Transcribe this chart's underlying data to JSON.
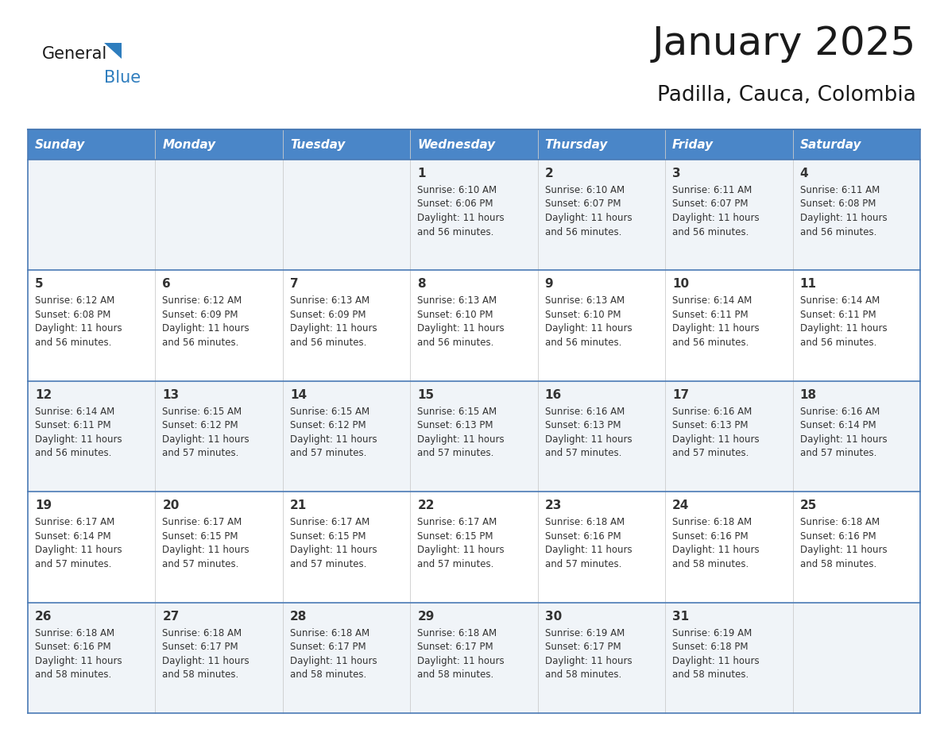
{
  "title": "January 2025",
  "subtitle": "Padilla, Cauca, Colombia",
  "days_of_week": [
    "Sunday",
    "Monday",
    "Tuesday",
    "Wednesday",
    "Thursday",
    "Friday",
    "Saturday"
  ],
  "header_bg_color": "#4a86c8",
  "header_text_color": "#ffffff",
  "cell_bg_row0": "#f0f4f8",
  "cell_bg_row1": "#ffffff",
  "cell_bg_row2": "#f0f4f8",
  "cell_bg_row3": "#ffffff",
  "cell_bg_row4": "#f0f4f8",
  "row_line_color": "#4a7ab5",
  "text_color": "#333333",
  "title_color": "#1a1a1a",
  "logo_general_color": "#1a1a1a",
  "logo_blue_color": "#2e7dbe",
  "calendar_data": [
    [
      {
        "day": null,
        "info": ""
      },
      {
        "day": null,
        "info": ""
      },
      {
        "day": null,
        "info": ""
      },
      {
        "day": 1,
        "info": "Sunrise: 6:10 AM\nSunset: 6:06 PM\nDaylight: 11 hours\nand 56 minutes."
      },
      {
        "day": 2,
        "info": "Sunrise: 6:10 AM\nSunset: 6:07 PM\nDaylight: 11 hours\nand 56 minutes."
      },
      {
        "day": 3,
        "info": "Sunrise: 6:11 AM\nSunset: 6:07 PM\nDaylight: 11 hours\nand 56 minutes."
      },
      {
        "day": 4,
        "info": "Sunrise: 6:11 AM\nSunset: 6:08 PM\nDaylight: 11 hours\nand 56 minutes."
      }
    ],
    [
      {
        "day": 5,
        "info": "Sunrise: 6:12 AM\nSunset: 6:08 PM\nDaylight: 11 hours\nand 56 minutes."
      },
      {
        "day": 6,
        "info": "Sunrise: 6:12 AM\nSunset: 6:09 PM\nDaylight: 11 hours\nand 56 minutes."
      },
      {
        "day": 7,
        "info": "Sunrise: 6:13 AM\nSunset: 6:09 PM\nDaylight: 11 hours\nand 56 minutes."
      },
      {
        "day": 8,
        "info": "Sunrise: 6:13 AM\nSunset: 6:10 PM\nDaylight: 11 hours\nand 56 minutes."
      },
      {
        "day": 9,
        "info": "Sunrise: 6:13 AM\nSunset: 6:10 PM\nDaylight: 11 hours\nand 56 minutes."
      },
      {
        "day": 10,
        "info": "Sunrise: 6:14 AM\nSunset: 6:11 PM\nDaylight: 11 hours\nand 56 minutes."
      },
      {
        "day": 11,
        "info": "Sunrise: 6:14 AM\nSunset: 6:11 PM\nDaylight: 11 hours\nand 56 minutes."
      }
    ],
    [
      {
        "day": 12,
        "info": "Sunrise: 6:14 AM\nSunset: 6:11 PM\nDaylight: 11 hours\nand 56 minutes."
      },
      {
        "day": 13,
        "info": "Sunrise: 6:15 AM\nSunset: 6:12 PM\nDaylight: 11 hours\nand 57 minutes."
      },
      {
        "day": 14,
        "info": "Sunrise: 6:15 AM\nSunset: 6:12 PM\nDaylight: 11 hours\nand 57 minutes."
      },
      {
        "day": 15,
        "info": "Sunrise: 6:15 AM\nSunset: 6:13 PM\nDaylight: 11 hours\nand 57 minutes."
      },
      {
        "day": 16,
        "info": "Sunrise: 6:16 AM\nSunset: 6:13 PM\nDaylight: 11 hours\nand 57 minutes."
      },
      {
        "day": 17,
        "info": "Sunrise: 6:16 AM\nSunset: 6:13 PM\nDaylight: 11 hours\nand 57 minutes."
      },
      {
        "day": 18,
        "info": "Sunrise: 6:16 AM\nSunset: 6:14 PM\nDaylight: 11 hours\nand 57 minutes."
      }
    ],
    [
      {
        "day": 19,
        "info": "Sunrise: 6:17 AM\nSunset: 6:14 PM\nDaylight: 11 hours\nand 57 minutes."
      },
      {
        "day": 20,
        "info": "Sunrise: 6:17 AM\nSunset: 6:15 PM\nDaylight: 11 hours\nand 57 minutes."
      },
      {
        "day": 21,
        "info": "Sunrise: 6:17 AM\nSunset: 6:15 PM\nDaylight: 11 hours\nand 57 minutes."
      },
      {
        "day": 22,
        "info": "Sunrise: 6:17 AM\nSunset: 6:15 PM\nDaylight: 11 hours\nand 57 minutes."
      },
      {
        "day": 23,
        "info": "Sunrise: 6:18 AM\nSunset: 6:16 PM\nDaylight: 11 hours\nand 57 minutes."
      },
      {
        "day": 24,
        "info": "Sunrise: 6:18 AM\nSunset: 6:16 PM\nDaylight: 11 hours\nand 58 minutes."
      },
      {
        "day": 25,
        "info": "Sunrise: 6:18 AM\nSunset: 6:16 PM\nDaylight: 11 hours\nand 58 minutes."
      }
    ],
    [
      {
        "day": 26,
        "info": "Sunrise: 6:18 AM\nSunset: 6:16 PM\nDaylight: 11 hours\nand 58 minutes."
      },
      {
        "day": 27,
        "info": "Sunrise: 6:18 AM\nSunset: 6:17 PM\nDaylight: 11 hours\nand 58 minutes."
      },
      {
        "day": 28,
        "info": "Sunrise: 6:18 AM\nSunset: 6:17 PM\nDaylight: 11 hours\nand 58 minutes."
      },
      {
        "day": 29,
        "info": "Sunrise: 6:18 AM\nSunset: 6:17 PM\nDaylight: 11 hours\nand 58 minutes."
      },
      {
        "day": 30,
        "info": "Sunrise: 6:19 AM\nSunset: 6:17 PM\nDaylight: 11 hours\nand 58 minutes."
      },
      {
        "day": 31,
        "info": "Sunrise: 6:19 AM\nSunset: 6:18 PM\nDaylight: 11 hours\nand 58 minutes."
      },
      {
        "day": null,
        "info": ""
      }
    ]
  ],
  "fig_width": 11.88,
  "fig_height": 9.18,
  "dpi": 100
}
